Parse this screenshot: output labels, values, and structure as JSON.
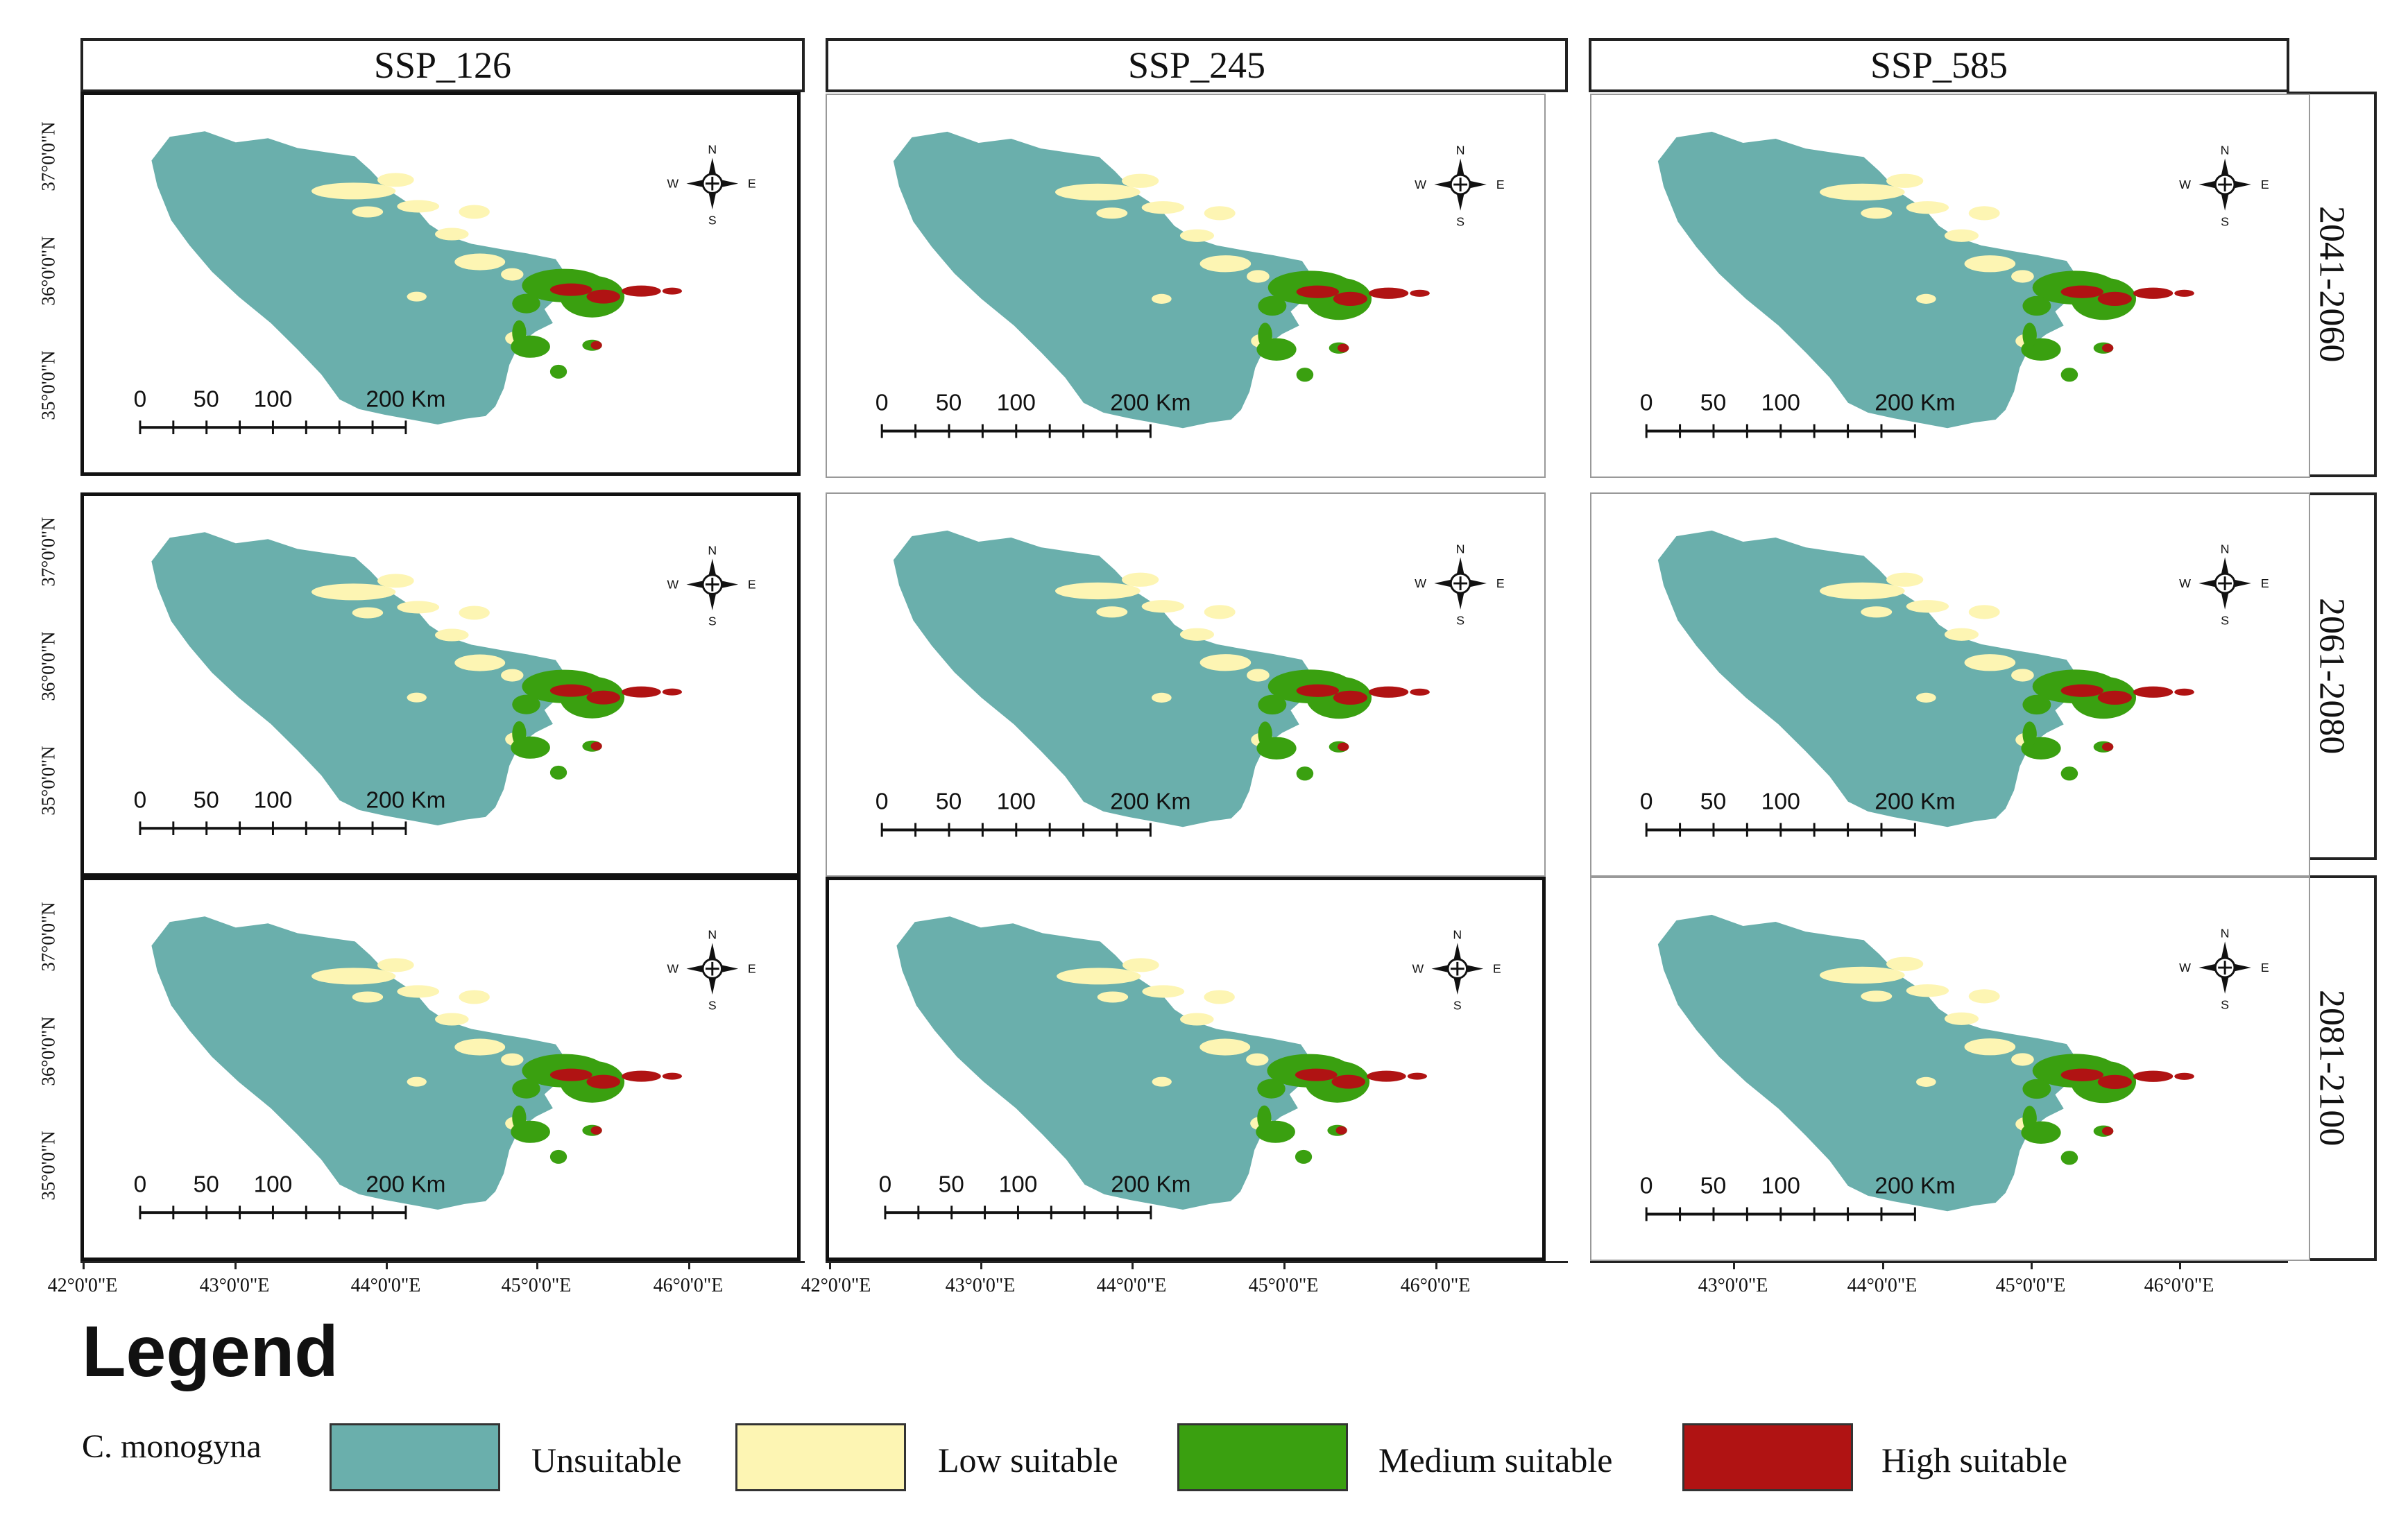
{
  "columns": [
    "SSP_126",
    "SSP_245",
    "SSP_585"
  ],
  "rows": [
    "2041-2060",
    "2061-2080",
    "2081-2100"
  ],
  "latitude_labels": [
    "37°0'0\"N",
    "36°0'0\"N",
    "35°0'0\"N"
  ],
  "longitude_labels": {
    "col1": [
      "42°0'0\"E",
      "43°0'0\"E",
      "44°0'0\"E",
      "45°0'0\"E",
      "46°0'0\"E"
    ],
    "col2": [
      "42°0'0\"E",
      "43°0'0\"E",
      "44°0'0\"E",
      "45°0'0\"E",
      "46°0'0\"E"
    ],
    "col3": [
      "43°0'0\"E",
      "44°0'0\"E",
      "45°0'0\"E",
      "46°0'0\"E"
    ]
  },
  "scale_bar": {
    "l0": "0",
    "l50": "50",
    "l100": "100",
    "l200": "200 Km"
  },
  "north_arrow": {
    "n": "N",
    "s": "S",
    "e": "E",
    "w": "W"
  },
  "legend": {
    "title": "Legend",
    "species": "C. monogyna",
    "classes": [
      {
        "label": "Unsuitable",
        "color": "#6aafac"
      },
      {
        "label": "Low suitable",
        "color": "#fdf5b3"
      },
      {
        "label": "Medium suitable",
        "color": "#3aa010"
      },
      {
        "label": "High suitable",
        "color": "#b01313"
      }
    ]
  }
}
